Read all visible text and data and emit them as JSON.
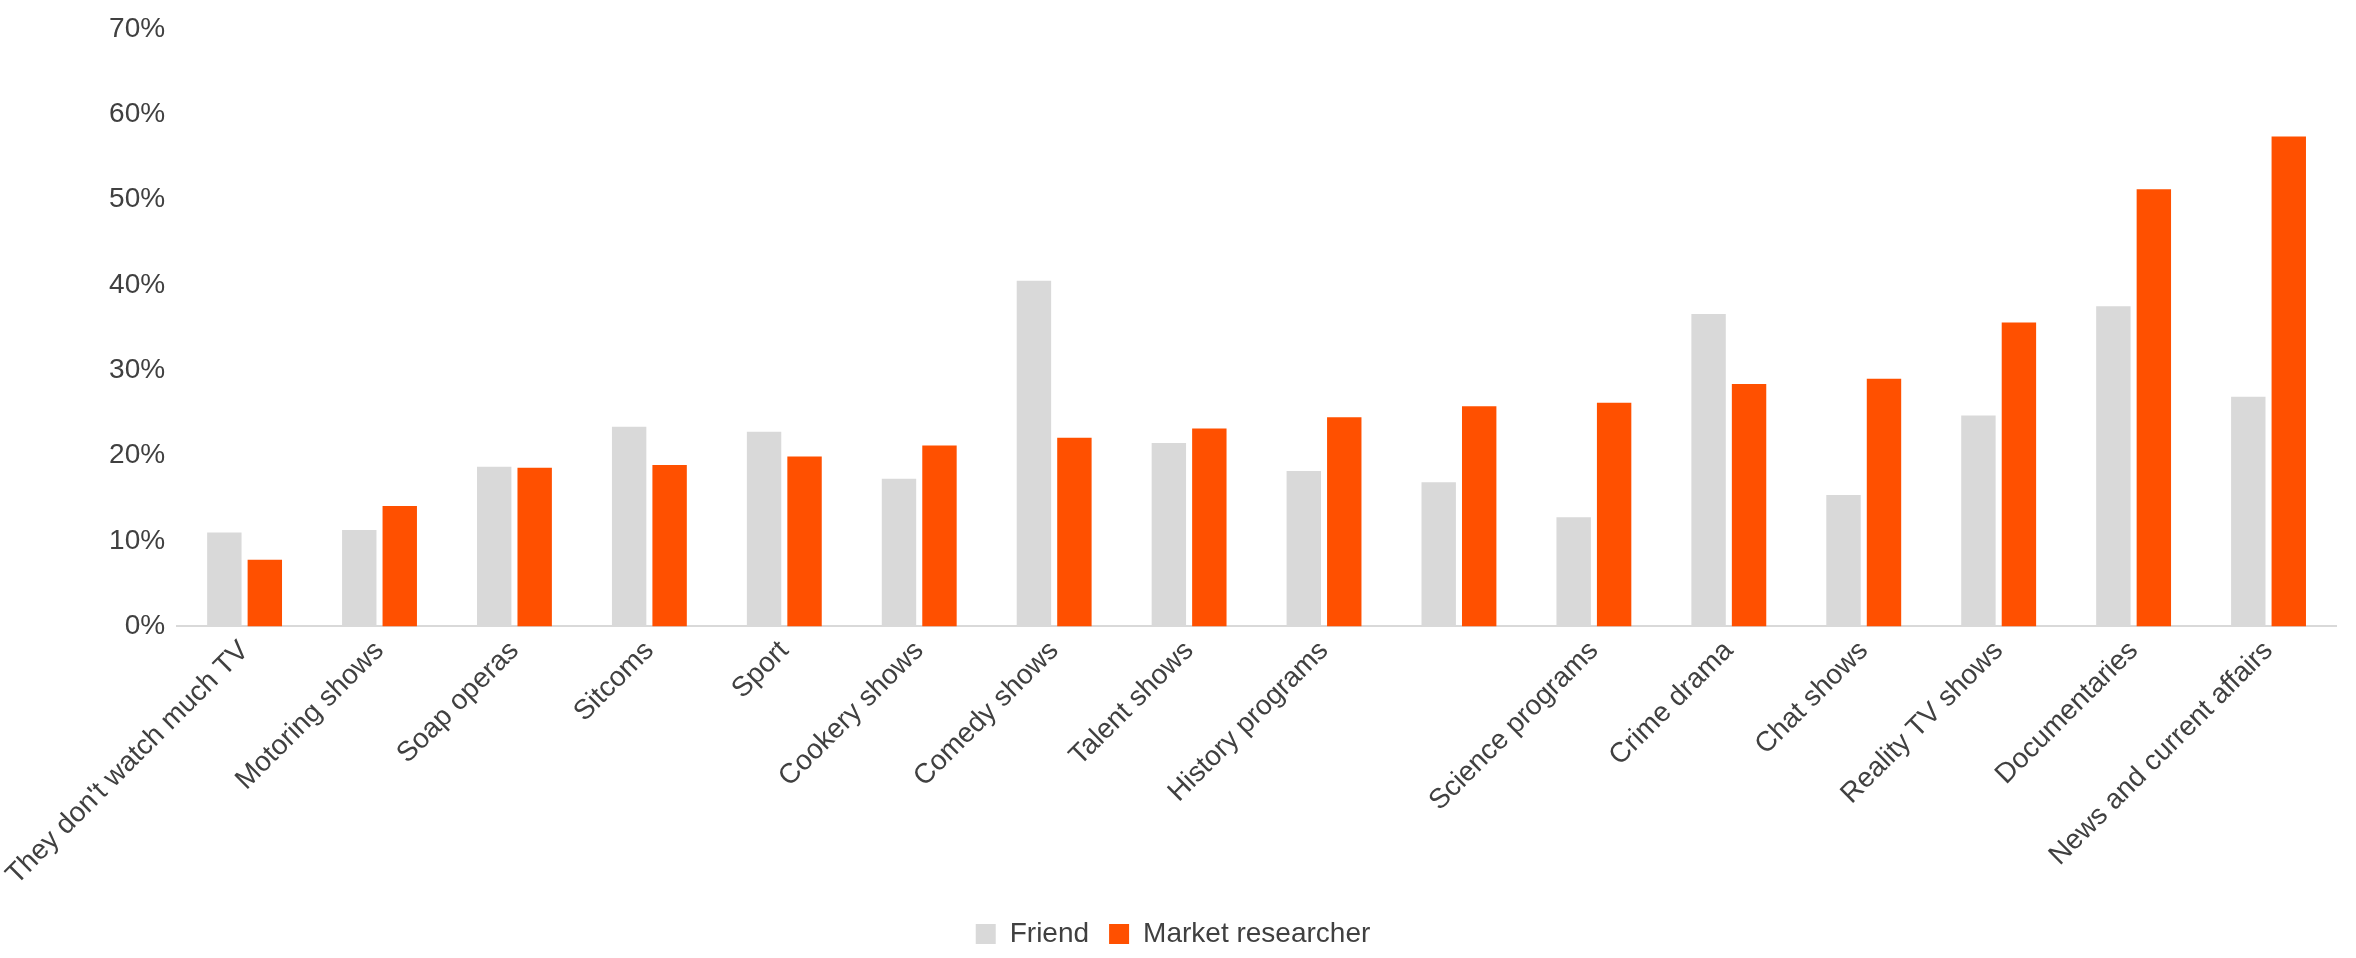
{
  "chart_data": {
    "type": "bar",
    "categories": [
      "They don't watch much TV",
      "Motoring shows",
      "Soap operas",
      "Sitcoms",
      "Sport",
      "Cookery shows",
      "Comedy shows",
      "Talent shows",
      "History programs",
      null,
      "Science programs",
      "Crime drama",
      "Chat shows",
      "Reality TV shows",
      "Documentaries",
      "News and current affairs"
    ],
    "series": [
      {
        "name": "Friend",
        "color": "#d9d9d9",
        "values": [
          11,
          11.3,
          18.7,
          23.4,
          22.8,
          17.3,
          40.5,
          21.5,
          18.2,
          16.9,
          12.8,
          36.6,
          15.4,
          24.7,
          37.5,
          26.9
        ]
      },
      {
        "name": "Market researcher",
        "color": "#ff5000",
        "values": [
          7.8,
          14.1,
          18.6,
          18.9,
          19.9,
          21.2,
          22.1,
          23.2,
          24.5,
          25.8,
          26.2,
          28.4,
          29,
          35.6,
          51.2,
          57.4
        ]
      }
    ],
    "ylim": [
      0,
      70
    ],
    "yticks": [
      {
        "value": 0,
        "label": "0%"
      },
      {
        "value": 10,
        "label": "10%"
      },
      {
        "value": 20,
        "label": "20%"
      },
      {
        "value": 30,
        "label": "30%"
      },
      {
        "value": 40,
        "label": "40%"
      },
      {
        "value": 50,
        "label": "50%"
      },
      {
        "value": 60,
        "label": "60%"
      },
      {
        "value": 70,
        "label": "70%"
      }
    ],
    "grid": false,
    "legend": "bottom"
  }
}
